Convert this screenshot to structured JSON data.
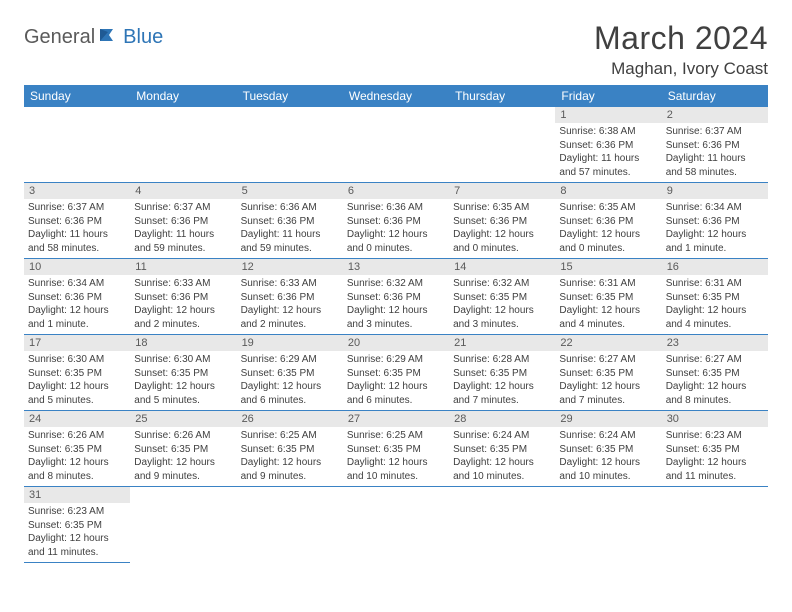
{
  "logo": {
    "general": "General",
    "blue": "Blue"
  },
  "title": "March 2024",
  "location": "Maghan, Ivory Coast",
  "colors": {
    "header_bg": "#3a82c4",
    "header_text": "#ffffff",
    "daynum_bg": "#e8e8e8",
    "text": "#404040",
    "border": "#3a82c4",
    "logo_blue": "#2e75b6",
    "logo_gray": "#5a5a5a"
  },
  "day_names": [
    "Sunday",
    "Monday",
    "Tuesday",
    "Wednesday",
    "Thursday",
    "Friday",
    "Saturday"
  ],
  "first_weekday": 5,
  "days": [
    {
      "n": 1,
      "rise": "6:38 AM",
      "set": "6:36 PM",
      "dl": "11 hours and 57 minutes."
    },
    {
      "n": 2,
      "rise": "6:37 AM",
      "set": "6:36 PM",
      "dl": "11 hours and 58 minutes."
    },
    {
      "n": 3,
      "rise": "6:37 AM",
      "set": "6:36 PM",
      "dl": "11 hours and 58 minutes."
    },
    {
      "n": 4,
      "rise": "6:37 AM",
      "set": "6:36 PM",
      "dl": "11 hours and 59 minutes."
    },
    {
      "n": 5,
      "rise": "6:36 AM",
      "set": "6:36 PM",
      "dl": "11 hours and 59 minutes."
    },
    {
      "n": 6,
      "rise": "6:36 AM",
      "set": "6:36 PM",
      "dl": "12 hours and 0 minutes."
    },
    {
      "n": 7,
      "rise": "6:35 AM",
      "set": "6:36 PM",
      "dl": "12 hours and 0 minutes."
    },
    {
      "n": 8,
      "rise": "6:35 AM",
      "set": "6:36 PM",
      "dl": "12 hours and 0 minutes."
    },
    {
      "n": 9,
      "rise": "6:34 AM",
      "set": "6:36 PM",
      "dl": "12 hours and 1 minute."
    },
    {
      "n": 10,
      "rise": "6:34 AM",
      "set": "6:36 PM",
      "dl": "12 hours and 1 minute."
    },
    {
      "n": 11,
      "rise": "6:33 AM",
      "set": "6:36 PM",
      "dl": "12 hours and 2 minutes."
    },
    {
      "n": 12,
      "rise": "6:33 AM",
      "set": "6:36 PM",
      "dl": "12 hours and 2 minutes."
    },
    {
      "n": 13,
      "rise": "6:32 AM",
      "set": "6:36 PM",
      "dl": "12 hours and 3 minutes."
    },
    {
      "n": 14,
      "rise": "6:32 AM",
      "set": "6:35 PM",
      "dl": "12 hours and 3 minutes."
    },
    {
      "n": 15,
      "rise": "6:31 AM",
      "set": "6:35 PM",
      "dl": "12 hours and 4 minutes."
    },
    {
      "n": 16,
      "rise": "6:31 AM",
      "set": "6:35 PM",
      "dl": "12 hours and 4 minutes."
    },
    {
      "n": 17,
      "rise": "6:30 AM",
      "set": "6:35 PM",
      "dl": "12 hours and 5 minutes."
    },
    {
      "n": 18,
      "rise": "6:30 AM",
      "set": "6:35 PM",
      "dl": "12 hours and 5 minutes."
    },
    {
      "n": 19,
      "rise": "6:29 AM",
      "set": "6:35 PM",
      "dl": "12 hours and 6 minutes."
    },
    {
      "n": 20,
      "rise": "6:29 AM",
      "set": "6:35 PM",
      "dl": "12 hours and 6 minutes."
    },
    {
      "n": 21,
      "rise": "6:28 AM",
      "set": "6:35 PM",
      "dl": "12 hours and 7 minutes."
    },
    {
      "n": 22,
      "rise": "6:27 AM",
      "set": "6:35 PM",
      "dl": "12 hours and 7 minutes."
    },
    {
      "n": 23,
      "rise": "6:27 AM",
      "set": "6:35 PM",
      "dl": "12 hours and 8 minutes."
    },
    {
      "n": 24,
      "rise": "6:26 AM",
      "set": "6:35 PM",
      "dl": "12 hours and 8 minutes."
    },
    {
      "n": 25,
      "rise": "6:26 AM",
      "set": "6:35 PM",
      "dl": "12 hours and 9 minutes."
    },
    {
      "n": 26,
      "rise": "6:25 AM",
      "set": "6:35 PM",
      "dl": "12 hours and 9 minutes."
    },
    {
      "n": 27,
      "rise": "6:25 AM",
      "set": "6:35 PM",
      "dl": "12 hours and 10 minutes."
    },
    {
      "n": 28,
      "rise": "6:24 AM",
      "set": "6:35 PM",
      "dl": "12 hours and 10 minutes."
    },
    {
      "n": 29,
      "rise": "6:24 AM",
      "set": "6:35 PM",
      "dl": "12 hours and 10 minutes."
    },
    {
      "n": 30,
      "rise": "6:23 AM",
      "set": "6:35 PM",
      "dl": "12 hours and 11 minutes."
    },
    {
      "n": 31,
      "rise": "6:23 AM",
      "set": "6:35 PM",
      "dl": "12 hours and 11 minutes."
    }
  ],
  "labels": {
    "sunrise": "Sunrise: ",
    "sunset": "Sunset: ",
    "daylight": "Daylight: "
  }
}
